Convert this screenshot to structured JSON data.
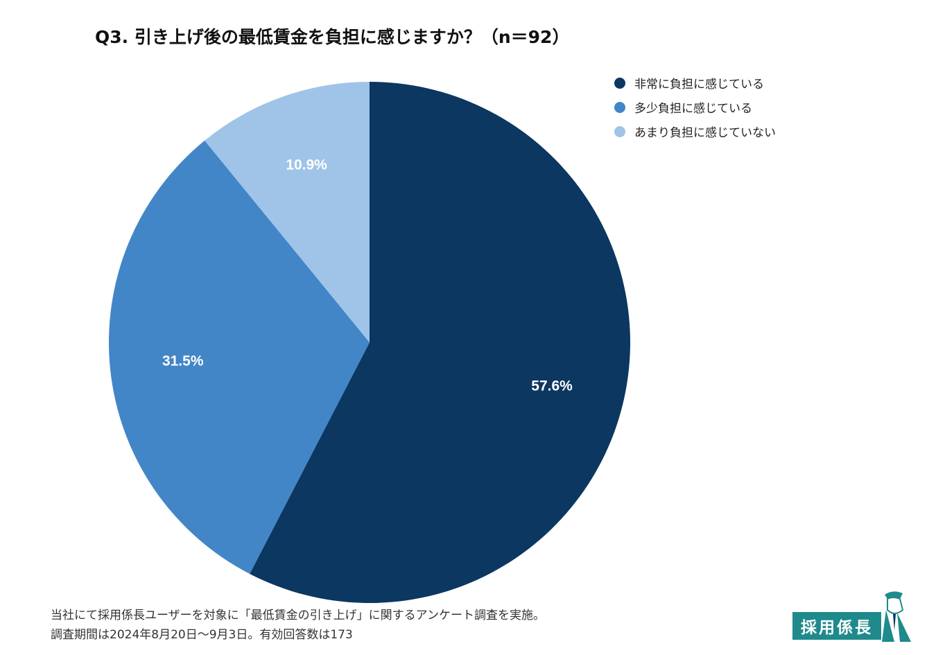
{
  "chart_data": {
    "type": "pie",
    "title": "Q3. 引き上げ後の最低賃金を負担に感じますか？（n＝92）",
    "categories": [
      "非常に負担に感じている",
      "多少負担に感じている",
      "あまり負担に感じていない"
    ],
    "values": [
      57.6,
      31.5,
      10.9
    ],
    "labels": [
      "57.6%",
      "31.5%",
      "10.9%"
    ],
    "colors": [
      "#0b3761",
      "#4286c8",
      "#9fc4e8"
    ],
    "start_angle": "12 o'clock",
    "direction": "clockwise",
    "legend_position": "top-right"
  },
  "footnote": {
    "line1": "当社にて採用係長ユーザーを対象に「最低賃金の引き上げ」に関するアンケート調査を実施。",
    "line2": "調査期間は2024年8月20日〜9月3日。有効回答数は173"
  },
  "logo": {
    "text": "採用係長",
    "color": "#1f8a8c"
  }
}
